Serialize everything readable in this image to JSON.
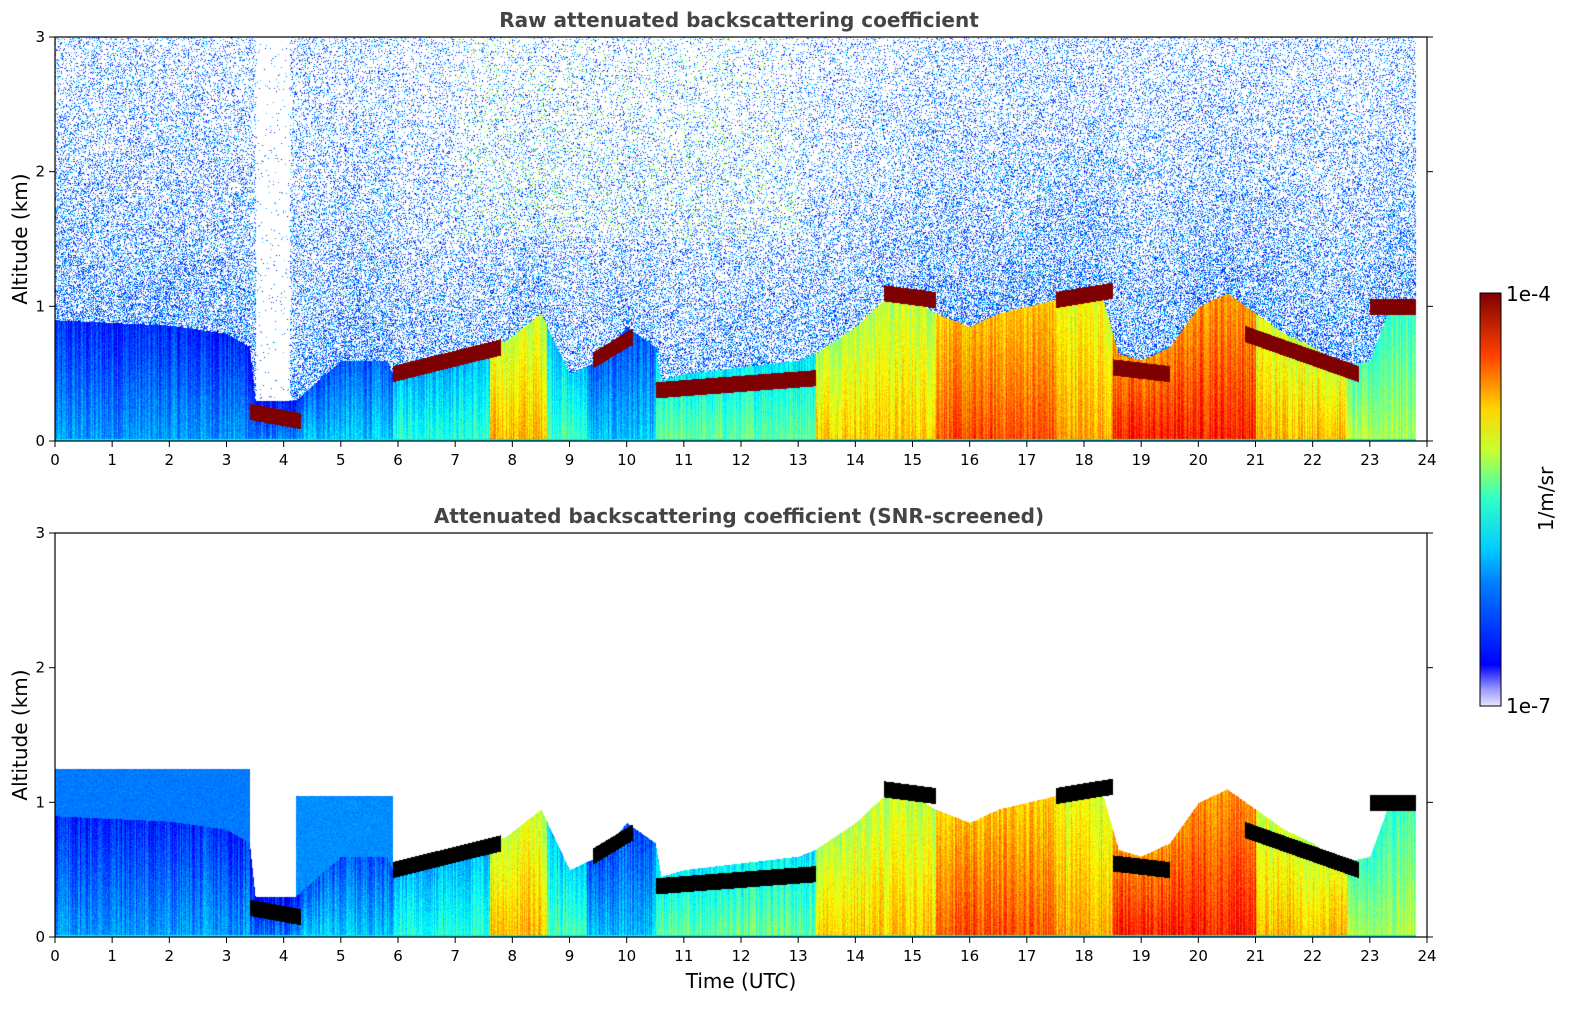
{
  "chart_data": [
    {
      "type": "heatmap",
      "title": "Raw attenuated backscattering coefficient",
      "xlabel": "",
      "ylabel": "Altitude (km)",
      "xlim": [
        0,
        24
      ],
      "ylim": [
        0,
        3
      ],
      "x_ticks": [
        "0",
        "1",
        "2",
        "3",
        "4",
        "5",
        "6",
        "7",
        "8",
        "9",
        "10",
        "11",
        "12",
        "13",
        "14",
        "15",
        "16",
        "17",
        "18",
        "19",
        "20",
        "21",
        "22",
        "23",
        "24"
      ],
      "y_ticks": [
        "0",
        "1",
        "2",
        "3"
      ],
      "data_extent_hours": [
        0,
        23.8
      ],
      "colorscale": "jet, log10",
      "layer_tops_km": {
        "x_hours": [
          0,
          1,
          2,
          3,
          3.4,
          3.5,
          4.2,
          5,
          5.8,
          5.9,
          7,
          7.9,
          8.5,
          9,
          9.5,
          10,
          10.5,
          10.6,
          11,
          12,
          13,
          13.3,
          14,
          14.5,
          15,
          15.4,
          16,
          16.5,
          17,
          17.5,
          18,
          18.3,
          18.6,
          19,
          19.5,
          20,
          20.5,
          21,
          21.5,
          22,
          22.5,
          23,
          23.3,
          23.8
        ],
        "aerosol_top": [
          0.9,
          0.88,
          0.86,
          0.8,
          0.7,
          0.3,
          0.3,
          0.6,
          0.6,
          0.5,
          0.6,
          0.75,
          0.95,
          0.5,
          0.6,
          0.85,
          0.7,
          0.45,
          0.5,
          0.55,
          0.6,
          0.65,
          0.85,
          1.05,
          1.05,
          0.95,
          0.85,
          0.95,
          1.0,
          1.05,
          1.15,
          1.1,
          0.65,
          0.6,
          0.7,
          1.0,
          1.1,
          0.95,
          0.8,
          0.7,
          0.55,
          0.6,
          0.95,
          1.05
        ]
      },
      "cloud_layers": [
        {
          "x": [
            3.4,
            4.3
          ],
          "alt_km": [
            0.22,
            0.15
          ]
        },
        {
          "x": [
            5.9,
            7.8
          ],
          "alt_km": [
            0.5,
            0.7
          ]
        },
        {
          "x": [
            9.4,
            10.1
          ],
          "alt_km": [
            0.6,
            0.78
          ]
        },
        {
          "x": [
            10.5,
            13.3
          ],
          "alt_km": [
            0.38,
            0.47
          ]
        },
        {
          "x": [
            14.5,
            15.4
          ],
          "alt_km": [
            1.1,
            1.05
          ]
        },
        {
          "x": [
            17.5,
            18.5
          ],
          "alt_km": [
            1.05,
            1.12
          ]
        },
        {
          "x": [
            18.5,
            19.5
          ],
          "alt_km": [
            0.55,
            0.5
          ]
        },
        {
          "x": [
            20.8,
            22.8
          ],
          "alt_km": [
            0.8,
            0.5
          ]
        },
        {
          "x": [
            23.0,
            23.8
          ],
          "alt_km": [
            1.0,
            1.0
          ]
        }
      ]
    },
    {
      "type": "heatmap",
      "title": "Attenuated backscattering coefficient (SNR-screened)",
      "xlabel": "Time (UTC)",
      "ylabel": "Altitude (km)",
      "xlim": [
        0,
        24
      ],
      "ylim": [
        0,
        3
      ],
      "x_ticks": [
        "0",
        "1",
        "2",
        "3",
        "4",
        "5",
        "6",
        "7",
        "8",
        "9",
        "10",
        "11",
        "12",
        "13",
        "14",
        "15",
        "16",
        "17",
        "18",
        "19",
        "20",
        "21",
        "22",
        "23",
        "24"
      ],
      "y_ticks": [
        "0",
        "1",
        "2",
        "3"
      ],
      "screened": true,
      "saturated_color": "#000000"
    }
  ],
  "colorbar": {
    "max_label": "1e-4",
    "min_label": "1e-7",
    "unit_label": "1/m/sr",
    "range": [
      1e-07,
      0.0001
    ],
    "scale": "log"
  }
}
